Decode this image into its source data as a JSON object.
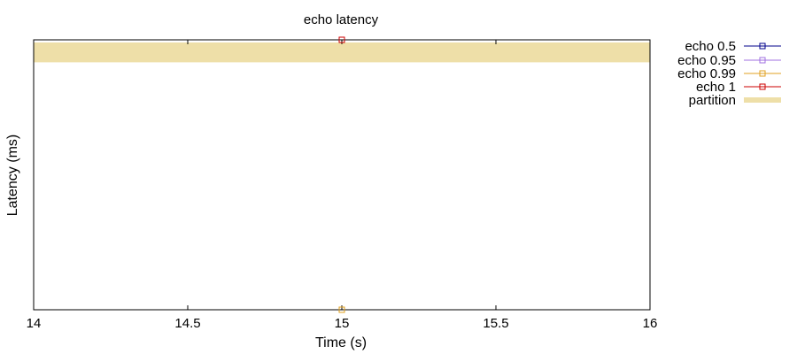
{
  "chart_data": {
    "type": "line",
    "title": "echo latency",
    "xlabel": "Time (s)",
    "ylabel": "Latency (ms)",
    "xlim": [
      14,
      16
    ],
    "ylim": [
      0,
      1
    ],
    "x_ticks": [
      "14",
      "14.5",
      "15",
      "15.5",
      "16"
    ],
    "x_tick_values": [
      14,
      14.5,
      15,
      15.5,
      16
    ],
    "grid": false,
    "legend_position": "outside-right",
    "series": [
      {
        "name": "echo 0.5",
        "color": "#00008b",
        "marker": "square",
        "points": [
          [
            15,
            0
          ]
        ]
      },
      {
        "name": "echo 0.95",
        "color": "#a070e0",
        "marker": "square",
        "points": [
          [
            15,
            0
          ]
        ]
      },
      {
        "name": "echo 0.99",
        "color": "#e0a020",
        "marker": "square",
        "points": [
          [
            15,
            0
          ]
        ]
      },
      {
        "name": "echo 1",
        "color": "#cc0000",
        "marker": "square",
        "points": [
          [
            15,
            1
          ]
        ]
      }
    ],
    "partition": {
      "name": "partition",
      "color": "#eedfa8",
      "x_range": [
        14,
        16
      ],
      "y_range": [
        0.92,
        1.0
      ]
    }
  }
}
